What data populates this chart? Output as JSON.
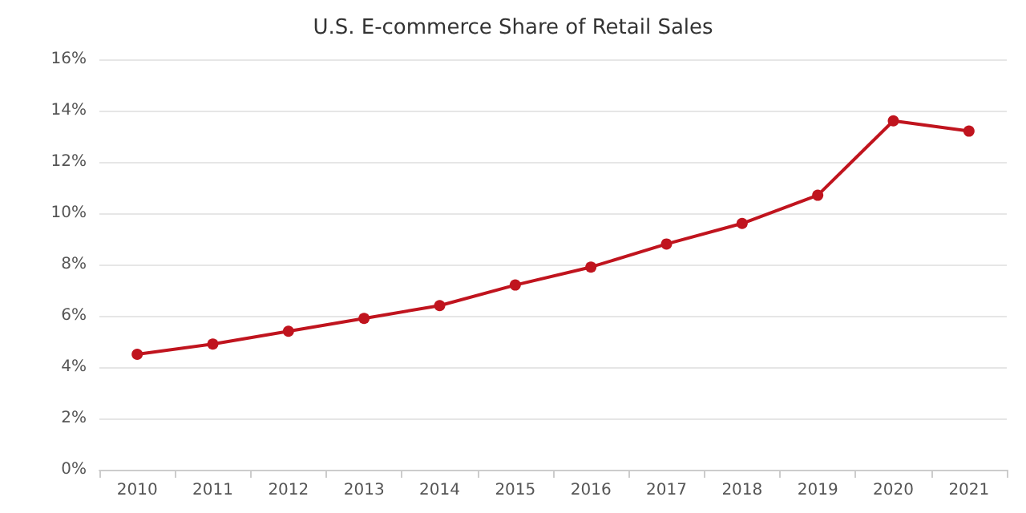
{
  "chart_data": {
    "type": "line",
    "title": "U.S. E-commerce Share of Retail Sales",
    "categories": [
      "2010",
      "2011",
      "2012",
      "2013",
      "2014",
      "2015",
      "2016",
      "2017",
      "2018",
      "2019",
      "2020",
      "2021"
    ],
    "series": [
      {
        "color": "#c0141e",
        "values": [
          4.5,
          4.9,
          5.4,
          5.9,
          6.4,
          7.2,
          7.9,
          8.8,
          9.6,
          10.7,
          13.6,
          13.2
        ]
      }
    ],
    "ylim": [
      0,
      16
    ],
    "yticks": [
      {
        "value": 0,
        "label": "0%"
      },
      {
        "value": 2,
        "label": "2%"
      },
      {
        "value": 4,
        "label": "4%"
      },
      {
        "value": 6,
        "label": "6%"
      },
      {
        "value": 8,
        "label": "8%"
      },
      {
        "value": 10,
        "label": "10%"
      },
      {
        "value": 12,
        "label": "12%"
      },
      {
        "value": 14,
        "label": "14%"
      },
      {
        "value": 16,
        "label": "16%"
      }
    ],
    "grid": "y",
    "marker": "circle",
    "line_style": "solid"
  }
}
